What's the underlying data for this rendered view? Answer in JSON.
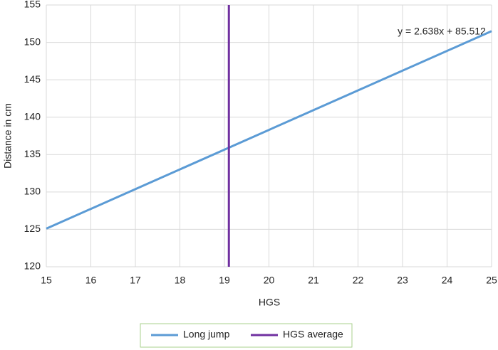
{
  "chart_data": {
    "type": "line",
    "x_label": "HGS",
    "y_label": "Distance in cm",
    "annotation": "y = 2.638x + 85.512",
    "series": [
      {
        "name": "Long jump",
        "color": "#5b9bd5",
        "x": [
          15,
          25
        ],
        "values": [
          125.1,
          151.5
        ]
      },
      {
        "name": "HGS average",
        "color": "#7030a0",
        "x": [
          19.1,
          19.1
        ],
        "values": [
          120,
          155
        ]
      }
    ],
    "xlim": [
      15,
      25
    ],
    "xticks": [
      15,
      16,
      17,
      18,
      19,
      20,
      21,
      22,
      23,
      24,
      25
    ],
    "ylim": [
      120,
      155
    ],
    "yticks": [
      120,
      125,
      130,
      135,
      140,
      145,
      150,
      155
    ],
    "grid": true,
    "legend": "bottom"
  }
}
